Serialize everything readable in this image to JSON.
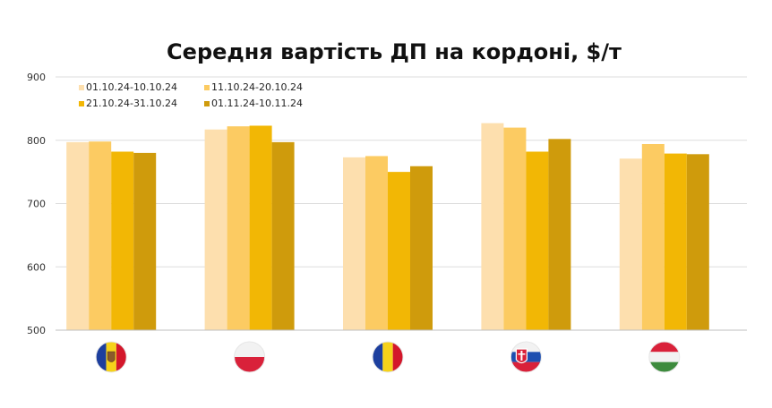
{
  "chart_data": {
    "type": "bar",
    "title": "Середня вартість ДП на кордоні, $/т",
    "xlabel": "",
    "ylabel": "",
    "ylim": [
      500,
      900
    ],
    "yticks": [
      500,
      600,
      700,
      800,
      900
    ],
    "grid": true,
    "legend_position": "top-left",
    "categories": [
      "moldova-flag-icon",
      "poland-flag-icon",
      "romania-flag-icon",
      "slovakia-flag-icon",
      "hungary-flag-icon"
    ],
    "series": [
      {
        "name": "01.10.24-10.10.24",
        "color": "#FDDFAE",
        "values": [
          797,
          817,
          773,
          827,
          771
        ]
      },
      {
        "name": "11.10.24-20.10.24",
        "color": "#FCCB62",
        "values": [
          798,
          822,
          775,
          820,
          794
        ]
      },
      {
        "name": "21.10.24-31.10.24",
        "color": "#F2B705",
        "values": [
          782,
          823,
          750,
          782,
          779
        ]
      },
      {
        "name": "01.11.24-10.11.24",
        "color": "#CF9B0C",
        "values": [
          780,
          797,
          759,
          802,
          778
        ]
      }
    ]
  }
}
